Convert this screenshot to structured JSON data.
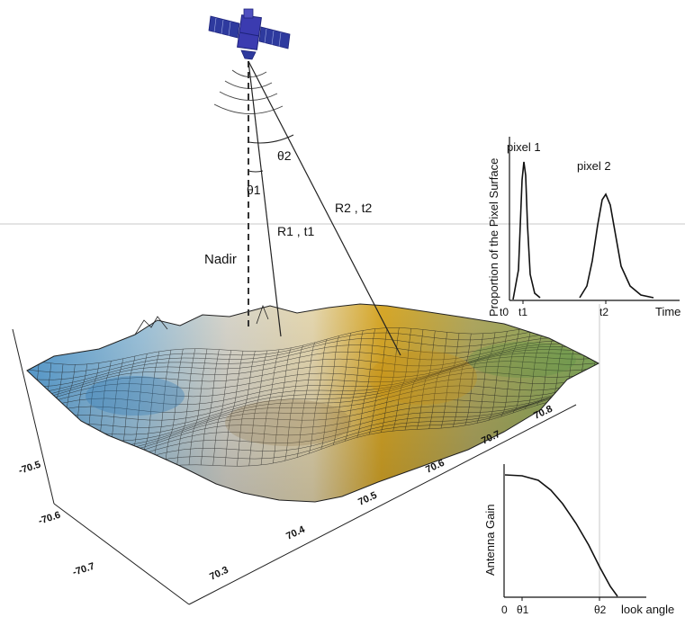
{
  "geometry_labels": {
    "nadir": "Nadir",
    "theta1": "θ1",
    "theta2": "θ2",
    "r1t1": "R1 , t1",
    "r2t2": "R2 , t2"
  },
  "terrain": {
    "axis_left_ticks": [
      "-70.5",
      "-70.6",
      "-70.7"
    ],
    "axis_bottom_ticks": [
      "70.3",
      "70.4",
      "70.5",
      "70.6",
      "70.7",
      "70.8"
    ]
  },
  "return_plot": {
    "ylabel": "Proportion of the Pixel Surface",
    "xlabel": "Time",
    "pixel1_label": "pixel 1",
    "pixel2_label": "pixel 2",
    "ticks": [
      "t0",
      "t1",
      "t2"
    ]
  },
  "gain_plot": {
    "ylabel": "Antenna Gain",
    "xlabel": "look angle",
    "ticks": [
      "0",
      "θ1",
      "θ2"
    ]
  },
  "colors": {
    "terrain_blue": "#3d8cc4",
    "terrain_cream": "#e8dcb8",
    "terrain_gold": "#d4a020",
    "terrain_green": "#7ea05a",
    "satellite_body": "#3a3aa0"
  }
}
